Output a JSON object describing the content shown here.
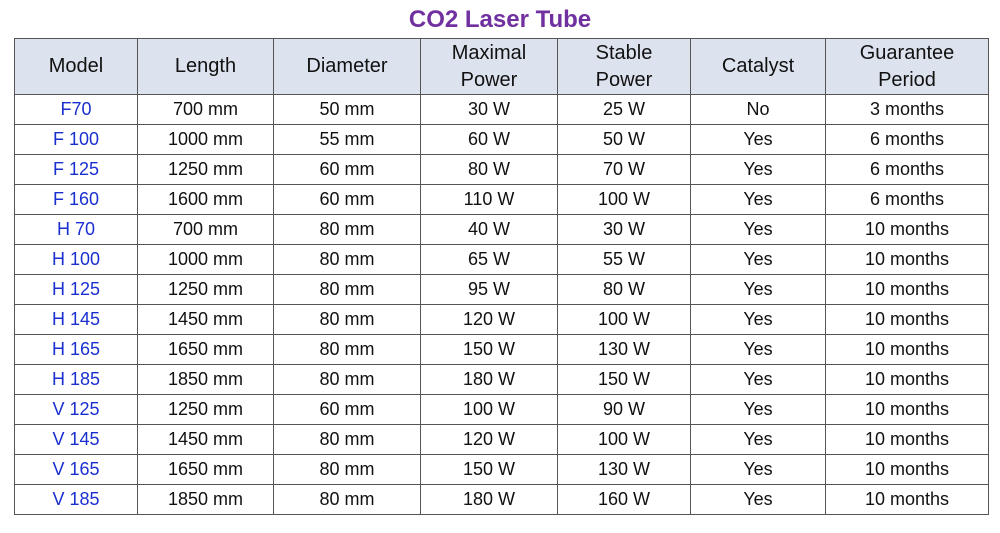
{
  "title": "CO2 Laser Tube",
  "table": {
    "header": [
      "Model",
      "Length",
      "Diameter",
      "Maximal Power",
      "Stable Power",
      "Catalyst",
      "Guarantee Period"
    ],
    "rows": [
      [
        "F70",
        "700 mm",
        "50 mm",
        "30 W",
        "25 W",
        "No",
        "3 months"
      ],
      [
        "F 100",
        "1000 mm",
        "55 mm",
        "60 W",
        "50 W",
        "Yes",
        "6 months"
      ],
      [
        "F 125",
        "1250 mm",
        "60 mm",
        "80 W",
        "70 W",
        "Yes",
        "6 months"
      ],
      [
        "F 160",
        "1600 mm",
        "60 mm",
        "110 W",
        "100 W",
        "Yes",
        "6 months"
      ],
      [
        "H 70",
        "700 mm",
        "80 mm",
        "40 W",
        "30 W",
        "Yes",
        "10 months"
      ],
      [
        "H 100",
        "1000 mm",
        "80 mm",
        "65 W",
        "55 W",
        "Yes",
        "10 months"
      ],
      [
        "H 125",
        "1250 mm",
        "80 mm",
        "95 W",
        "80 W",
        "Yes",
        "10 months"
      ],
      [
        "H 145",
        "1450 mm",
        "80 mm",
        "120 W",
        "100 W",
        "Yes",
        "10 months"
      ],
      [
        "H 165",
        "1650 mm",
        "80 mm",
        "150 W",
        "130 W",
        "Yes",
        "10 months"
      ],
      [
        "H 185",
        "1850 mm",
        "80 mm",
        "180 W",
        "150 W",
        "Yes",
        "10 months"
      ],
      [
        "V 125",
        "1250 mm",
        "60 mm",
        "100 W",
        "90 W",
        "Yes",
        "10 months"
      ],
      [
        "V 145",
        "1450 mm",
        "80 mm",
        "120 W",
        "100 W",
        "Yes",
        "10 months"
      ],
      [
        "V 165",
        "1650 mm",
        "80 mm",
        "150 W",
        "130 W",
        "Yes",
        "10 months"
      ],
      [
        "V 185",
        "1850 mm",
        "80 mm",
        "180 W",
        "160 W",
        "Yes",
        "10 months"
      ]
    ]
  }
}
